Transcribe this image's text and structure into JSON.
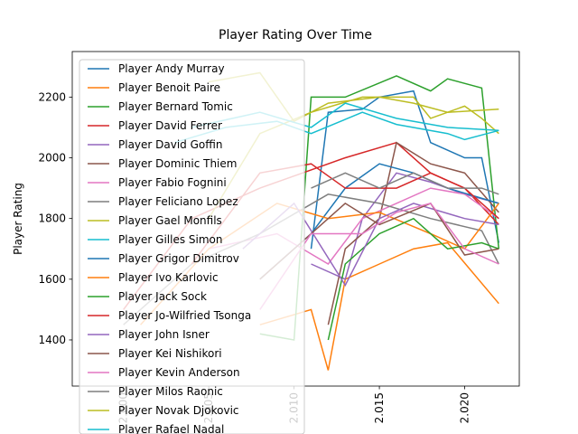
{
  "chart_data": {
    "type": "line",
    "title": "Player Rating Over Time",
    "y_label": "Player Rating",
    "xlim": [
      1997,
      2023.2
    ],
    "ylim": [
      1248,
      2350
    ],
    "xticks": [
      {
        "value": 2000,
        "label": "2.000"
      },
      {
        "value": 2005,
        "label": "2.005"
      },
      {
        "value": 2010,
        "label": "2.010"
      },
      {
        "value": 2015,
        "label": "2.015"
      },
      {
        "value": 2020,
        "label": "2.020"
      }
    ],
    "yticks": [
      1400,
      1600,
      1800,
      2000,
      2200
    ],
    "legend": "upper left",
    "series": [
      {
        "name": "Player Andy Murray",
        "color": "#1f77b4",
        "x": [
          2011,
          2012,
          2014,
          2015,
          2017,
          2018,
          2020,
          2021,
          2022
        ],
        "values": [
          1700,
          2150,
          2160,
          2200,
          2220,
          2050,
          2000,
          2000,
          1720
        ]
      },
      {
        "name": "Player Benoit Paire",
        "color": "#ff7f0e",
        "x": [
          2008,
          2011,
          2012,
          2013,
          2015,
          2017,
          2019,
          2022
        ],
        "values": [
          1450,
          1500,
          1300,
          1600,
          1650,
          1700,
          1720,
          1520
        ]
      },
      {
        "name": "Player Bernard Tomic",
        "color": "#2ca02c",
        "x": [
          2008,
          2010,
          2011,
          2013,
          2016,
          2018,
          2019,
          2021,
          2022
        ],
        "values": [
          1420,
          1400,
          2200,
          2200,
          2270,
          2220,
          2260,
          2230,
          1700
        ]
      },
      {
        "name": "Player David Ferrer",
        "color": "#d62728",
        "x": [
          2000,
          2004,
          2008,
          2011,
          2013,
          2016,
          2018,
          2020,
          2022
        ],
        "values": [
          1500,
          1800,
          1900,
          1960,
          2000,
          2050,
          1950,
          1900,
          1780
        ]
      },
      {
        "name": "Player David Goffin",
        "color": "#9467bd",
        "x": [
          2011,
          2013,
          2014,
          2016,
          2018,
          2020,
          2022
        ],
        "values": [
          1650,
          1600,
          1800,
          1950,
          1920,
          1880,
          1850
        ]
      },
      {
        "name": "Player Dominic Thiem",
        "color": "#8c564b",
        "x": [
          2012,
          2013,
          2015,
          2016,
          2018,
          2020,
          2022
        ],
        "values": [
          1450,
          1700,
          1800,
          2050,
          1980,
          1950,
          1820
        ]
      },
      {
        "name": "Player Fabio Fognini",
        "color": "#e377c2",
        "x": [
          2005,
          2009,
          2012,
          2014,
          2016,
          2018,
          2020,
          2022
        ],
        "values": [
          1700,
          1750,
          1650,
          1800,
          1850,
          1900,
          1880,
          1800
        ]
      },
      {
        "name": "Player Feliciano Lopez",
        "color": "#7f7f7f",
        "x": [
          2000,
          2004,
          2008,
          2012,
          2015,
          2018,
          2021,
          2022
        ],
        "values": [
          1450,
          1650,
          1750,
          1880,
          1850,
          1800,
          1760,
          1650
        ]
      },
      {
        "name": "Player Gael Monfils",
        "color": "#bcbd22",
        "x": [
          2005,
          2008,
          2011,
          2014,
          2016,
          2017,
          2018,
          2020,
          2021,
          2022
        ],
        "values": [
          1800,
          2080,
          2150,
          2200,
          2200,
          2200,
          2130,
          2170,
          2130,
          2080
        ]
      },
      {
        "name": "Player Gilles Simon",
        "color": "#17becf",
        "x": [
          2003,
          2006,
          2009,
          2011,
          2014,
          2016,
          2019,
          2020,
          2022
        ],
        "values": [
          2050,
          2100,
          2120,
          2080,
          2150,
          2110,
          2080,
          2060,
          2090
        ]
      },
      {
        "name": "Player Grigor Dimitrov",
        "color": "#1f77b4",
        "x": [
          2008,
          2011,
          2013,
          2015,
          2017,
          2019,
          2022
        ],
        "values": [
          1600,
          1750,
          1900,
          1980,
          1950,
          1900,
          1850
        ]
      },
      {
        "name": "Player Ivo Karlovic",
        "color": "#ff7f0e",
        "x": [
          2001,
          2005,
          2009,
          2012,
          2015,
          2018,
          2020,
          2022
        ],
        "values": [
          1450,
          1700,
          1850,
          1800,
          1820,
          1750,
          1700,
          1850
        ]
      },
      {
        "name": "Player Jack Sock",
        "color": "#2ca02c",
        "x": [
          2012,
          2013,
          2015,
          2017,
          2019,
          2021,
          2022
        ],
        "values": [
          1400,
          1650,
          1750,
          1800,
          1700,
          1720,
          1700
        ]
      },
      {
        "name": "Player Jo-Wilfried Tsonga",
        "color": "#d62728",
        "x": [
          2004,
          2008,
          2011,
          2013,
          2016,
          2018,
          2020,
          2022
        ],
        "values": [
          1650,
          1950,
          1980,
          1900,
          1900,
          1950,
          1900,
          1800
        ]
      },
      {
        "name": "Player John Isner",
        "color": "#9467bd",
        "x": [
          2007,
          2010,
          2013,
          2015,
          2017,
          2020,
          2022
        ],
        "values": [
          1700,
          1850,
          1580,
          1800,
          1850,
          1800,
          1780
        ]
      },
      {
        "name": "Player Kei Nishikori",
        "color": "#8c564b",
        "x": [
          2008,
          2011,
          2013,
          2015,
          2018,
          2020,
          2022
        ],
        "values": [
          1600,
          1750,
          1850,
          1780,
          1850,
          1680,
          1700
        ]
      },
      {
        "name": "Player Kevin Anderson",
        "color": "#e377c2",
        "x": [
          2008,
          2011,
          2014,
          2016,
          2018,
          2020,
          2022
        ],
        "values": [
          1500,
          1750,
          1750,
          1820,
          1850,
          1700,
          1650
        ]
      },
      {
        "name": "Player Milos Raonic",
        "color": "#7f7f7f",
        "x": [
          2011,
          2013,
          2015,
          2017,
          2019,
          2021,
          2022
        ],
        "values": [
          1900,
          1950,
          1900,
          1950,
          1900,
          1900,
          1880
        ]
      },
      {
        "name": "Player Novak Djokovic",
        "color": "#bcbd22",
        "x": [
          2005,
          2008,
          2010,
          2012,
          2015,
          2017,
          2019,
          2022
        ],
        "values": [
          2250,
          2280,
          2120,
          2180,
          2200,
          2180,
          2150,
          2160
        ]
      },
      {
        "name": "Player Rafael Nadal",
        "color": "#17becf",
        "x": [
          2004,
          2008,
          2011,
          2013,
          2016,
          2019,
          2022
        ],
        "values": [
          2100,
          2150,
          2100,
          2180,
          2130,
          2100,
          2090
        ]
      }
    ]
  }
}
